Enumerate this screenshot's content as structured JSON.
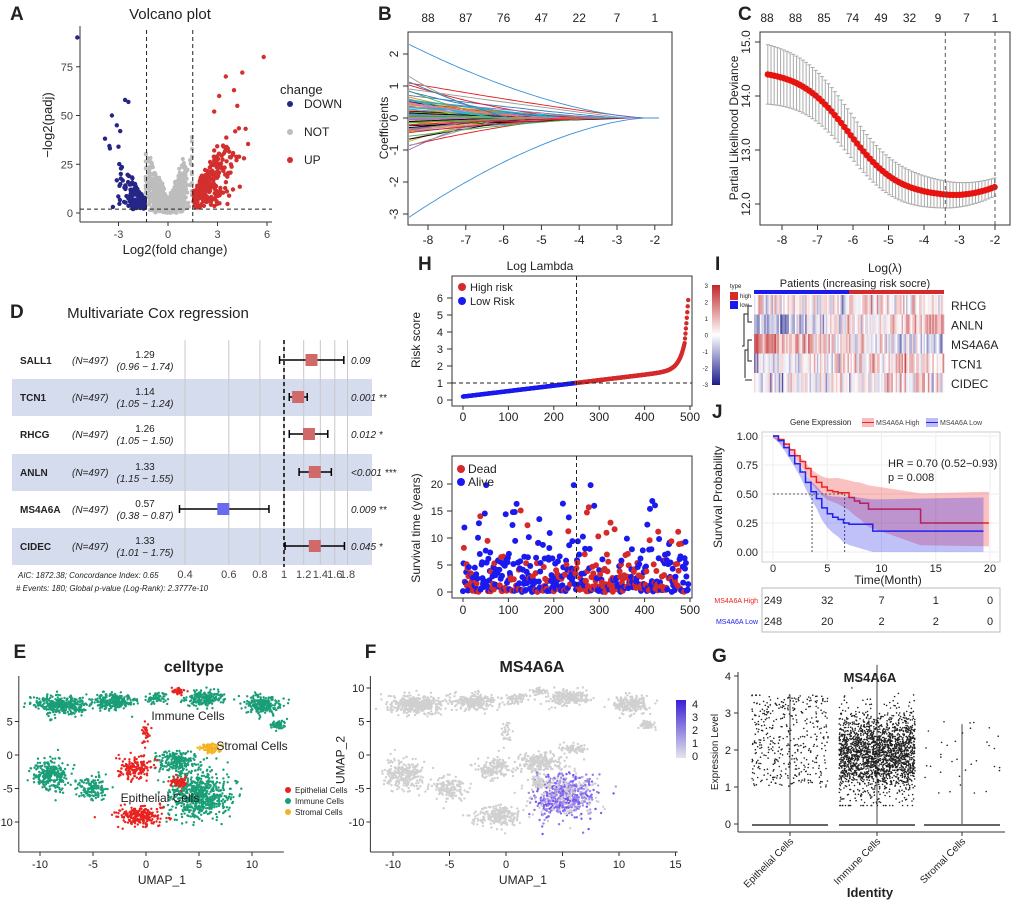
{
  "figure": {
    "panel_labels": [
      "A",
      "B",
      "C",
      "D",
      "E",
      "F",
      "G",
      "H",
      "I",
      "J"
    ]
  },
  "chart_data": [
    {
      "type": "scatter",
      "id": "A",
      "title": "Volcano plot",
      "xlabel": "Log2(fold change)",
      "ylabel": "−log2(padj)",
      "xticks": [
        -3,
        0,
        3,
        6
      ],
      "yticks": [
        0,
        25,
        50,
        75
      ],
      "xlim": [
        -6.5,
        6.5
      ],
      "ylim": [
        0,
        95
      ],
      "fc_cutoff": 1.5,
      "padj_line": 2,
      "legend_title": "change",
      "legend": [
        {
          "label": "DOWN",
          "color": "#262686"
        },
        {
          "label": "NOT",
          "color": "#bdbdbd"
        },
        {
          "label": "UP",
          "color": "#d32f2f"
        }
      ]
    },
    {
      "type": "line",
      "id": "B",
      "xlabel": "Log Lambda",
      "ylabel": "Coefficients",
      "xticks": [
        -8,
        -7,
        -6,
        -5,
        -4,
        -3,
        -2
      ],
      "yticks": [
        2,
        1,
        0,
        -1,
        -2,
        -3
      ],
      "top_counts": [
        88,
        87,
        76,
        47,
        22,
        7,
        1
      ],
      "xlim": [
        -8.6,
        -1.8
      ],
      "ylim": [
        -3.3,
        2.5
      ]
    },
    {
      "type": "scatter",
      "id": "C",
      "xlabel": "Log(λ)",
      "ylabel": "Partial Likelihood Deviance",
      "xticks": [
        -8,
        -7,
        -6,
        -5,
        -4,
        -3,
        -2
      ],
      "yticks": [
        15.0,
        14.0,
        13.0,
        12.0
      ],
      "ytick_labels": [
        "15.0",
        "14.0",
        "13.0",
        "12.0"
      ],
      "top_counts": [
        88,
        88,
        85,
        74,
        49,
        32,
        9,
        7,
        1
      ],
      "lambda_lines": [
        -3.4,
        -2.0
      ],
      "ylim": [
        11.8,
        15.2
      ]
    },
    {
      "type": "forest",
      "id": "D",
      "title": "Multivariate Cox regression",
      "rows": [
        {
          "gene": "SALL1",
          "n": "(N=497)",
          "hr": 1.29,
          "hr_label": "1.29",
          "ci": "(0.96 − 1.74)",
          "lo": 0.96,
          "hi": 1.74,
          "p": "0.09"
        },
        {
          "gene": "TCN1",
          "n": "(N=497)",
          "hr": 1.14,
          "hr_label": "1.14",
          "ci": "(1.05 − 1.24)",
          "lo": 1.05,
          "hi": 1.24,
          "p": "0.001 **"
        },
        {
          "gene": "RHCG",
          "n": "(N=497)",
          "hr": 1.26,
          "hr_label": "1.26",
          "ci": "(1.05 − 1.50)",
          "lo": 1.05,
          "hi": 1.5,
          "p": "0.012 *"
        },
        {
          "gene": "ANLN",
          "n": "(N=497)",
          "hr": 1.33,
          "hr_label": "1.33",
          "ci": "(1.15 − 1.55)",
          "lo": 1.15,
          "hi": 1.55,
          "p": "<0.001 ***"
        },
        {
          "gene": "MS4A6A",
          "n": "(N=497)",
          "hr": 0.57,
          "hr_label": "0.57",
          "ci": "(0.38 − 0.87)",
          "lo": 0.38,
          "hi": 0.87,
          "p": "0.009 **"
        },
        {
          "gene": "CIDEC",
          "n": "(N=497)",
          "hr": 1.33,
          "hr_label": "1.33",
          "ci": "(1.01 − 1.75)",
          "lo": 1.01,
          "hi": 1.75,
          "p": "0.045 *"
        }
      ],
      "xticks": [
        0.4,
        0.6,
        0.8,
        1,
        1.2,
        1.4,
        1.6,
        1.8
      ],
      "footer1": "AIC: 1872.38; Concordance Index: 0.65",
      "footer2": "# Events: 180; Global p-value (Log-Rank): 2.3777e-10"
    },
    {
      "type": "scatter",
      "id": "H-top",
      "ylabel": "Risk score",
      "xticks": [
        0,
        100,
        200,
        300,
        400,
        500
      ],
      "yticks": [
        0,
        1,
        2,
        3,
        4,
        5,
        6
      ],
      "cutoff_index": 250,
      "cutoff_score": 1,
      "n": 497,
      "max_score": 6.4,
      "legend": [
        {
          "label": "High risk",
          "color": "#d42a2a"
        },
        {
          "label": "Low Risk",
          "color": "#1a1aee"
        }
      ]
    },
    {
      "type": "scatter",
      "id": "H-bottom",
      "ylabel": "Survival time (years)",
      "xticks": [
        0,
        100,
        200,
        300,
        400,
        500
      ],
      "yticks": [
        0,
        5,
        10,
        15,
        20
      ],
      "cutoff_index": 250,
      "legend": [
        {
          "label": "Dead",
          "color": "#d42a2a"
        },
        {
          "label": "Alive",
          "color": "#1a1aee"
        }
      ]
    },
    {
      "type": "heatmap",
      "id": "I",
      "title": "Patients (increasing risk socre)",
      "rows": [
        "RHCG",
        "ANLN",
        "MS4A6A",
        "TCN1",
        "CIDEC"
      ],
      "legend_title": "type",
      "types": [
        {
          "label": "high",
          "color": "#d42a2a"
        },
        {
          "label": "low",
          "color": "#1a1aee"
        }
      ],
      "scale_ticks": [
        3,
        2,
        1,
        0,
        -1,
        -2,
        -3
      ]
    },
    {
      "type": "line",
      "id": "J",
      "legend_title": "Gene Expression",
      "xlabel": "Time(Month)",
      "ylabel": "Survival Probability",
      "xticks": [
        0,
        5,
        10,
        15,
        20
      ],
      "yticks": [
        "1.00",
        "0.75",
        "0.50",
        "0.25",
        "0.00"
      ],
      "annotation1": "HR = 0.70 (0.52−0.93)",
      "annotation2": "p = 0.008",
      "series": [
        {
          "name": "MS4A6A High",
          "color": "#ee2222",
          "steps": [
            [
              0,
              1
            ],
            [
              0.5,
              0.97
            ],
            [
              1,
              0.93
            ],
            [
              1.5,
              0.88
            ],
            [
              2,
              0.83
            ],
            [
              2.5,
              0.78
            ],
            [
              3,
              0.72
            ],
            [
              3.5,
              0.65
            ],
            [
              4,
              0.6
            ],
            [
              4.5,
              0.56
            ],
            [
              5,
              0.53
            ],
            [
              5.5,
              0.52
            ],
            [
              6,
              0.51
            ],
            [
              7,
              0.47
            ],
            [
              7.5,
              0.44
            ],
            [
              8,
              0.42
            ],
            [
              8.8,
              0.37
            ],
            [
              13.6,
              0.25
            ],
            [
              19.9,
              0.25
            ]
          ],
          "median": 6.6,
          "at_risk": [
            249,
            32,
            7,
            1,
            0
          ]
        },
        {
          "name": "MS4A6A Low",
          "color": "#2222ee",
          "steps": [
            [
              0,
              1
            ],
            [
              0.5,
              0.96
            ],
            [
              1,
              0.9
            ],
            [
              1.5,
              0.83
            ],
            [
              2,
              0.76
            ],
            [
              2.5,
              0.69
            ],
            [
              3,
              0.6
            ],
            [
              3.5,
              0.52
            ],
            [
              4,
              0.46
            ],
            [
              4.5,
              0.38
            ],
            [
              5,
              0.33
            ],
            [
              5.5,
              0.3
            ],
            [
              6,
              0.28
            ],
            [
              6.5,
              0.25
            ],
            [
              7,
              0.24
            ],
            [
              9.2,
              0.18
            ],
            [
              19.4,
              0.18
            ]
          ],
          "median": 3.6,
          "at_risk": [
            248,
            20,
            2,
            2,
            0
          ]
        }
      ]
    },
    {
      "type": "scatter",
      "id": "E",
      "title": "celltype",
      "xlabel": "UMAP_1",
      "ylabel": "UMAP_2",
      "xticks": [
        -10,
        -5,
        0,
        5,
        10
      ],
      "yticks": [
        5,
        0,
        -5,
        -10
      ],
      "legend": [
        {
          "label": "Epithelial Cells",
          "color": "#e8231f"
        },
        {
          "label": "Immune Cells",
          "color": "#1a9e77"
        },
        {
          "label": "Stromal Cells",
          "color": "#f3b21e"
        }
      ],
      "cluster_labels": [
        "Immune Cells",
        "Stromal Cells",
        "Epithelial Cells"
      ]
    },
    {
      "type": "scatter",
      "id": "F",
      "title": "MS4A6A",
      "xlabel": "UMAP_1",
      "ylabel": "UMAP_2",
      "xticks": [
        -10,
        -5,
        0,
        5,
        10,
        15
      ],
      "yticks": [
        10,
        5,
        0,
        -5,
        -10
      ],
      "scale_ticks": [
        4,
        3,
        2,
        1,
        0
      ]
    },
    {
      "type": "scatter",
      "id": "G",
      "title": "MS4A6A",
      "xlabel": "Identity",
      "ylabel": "Expression Level",
      "categories": [
        "Epithelial Cells",
        "Immune Cells",
        "Stromal Cells"
      ],
      "yticks": [
        0,
        1,
        2,
        3,
        4
      ]
    }
  ]
}
